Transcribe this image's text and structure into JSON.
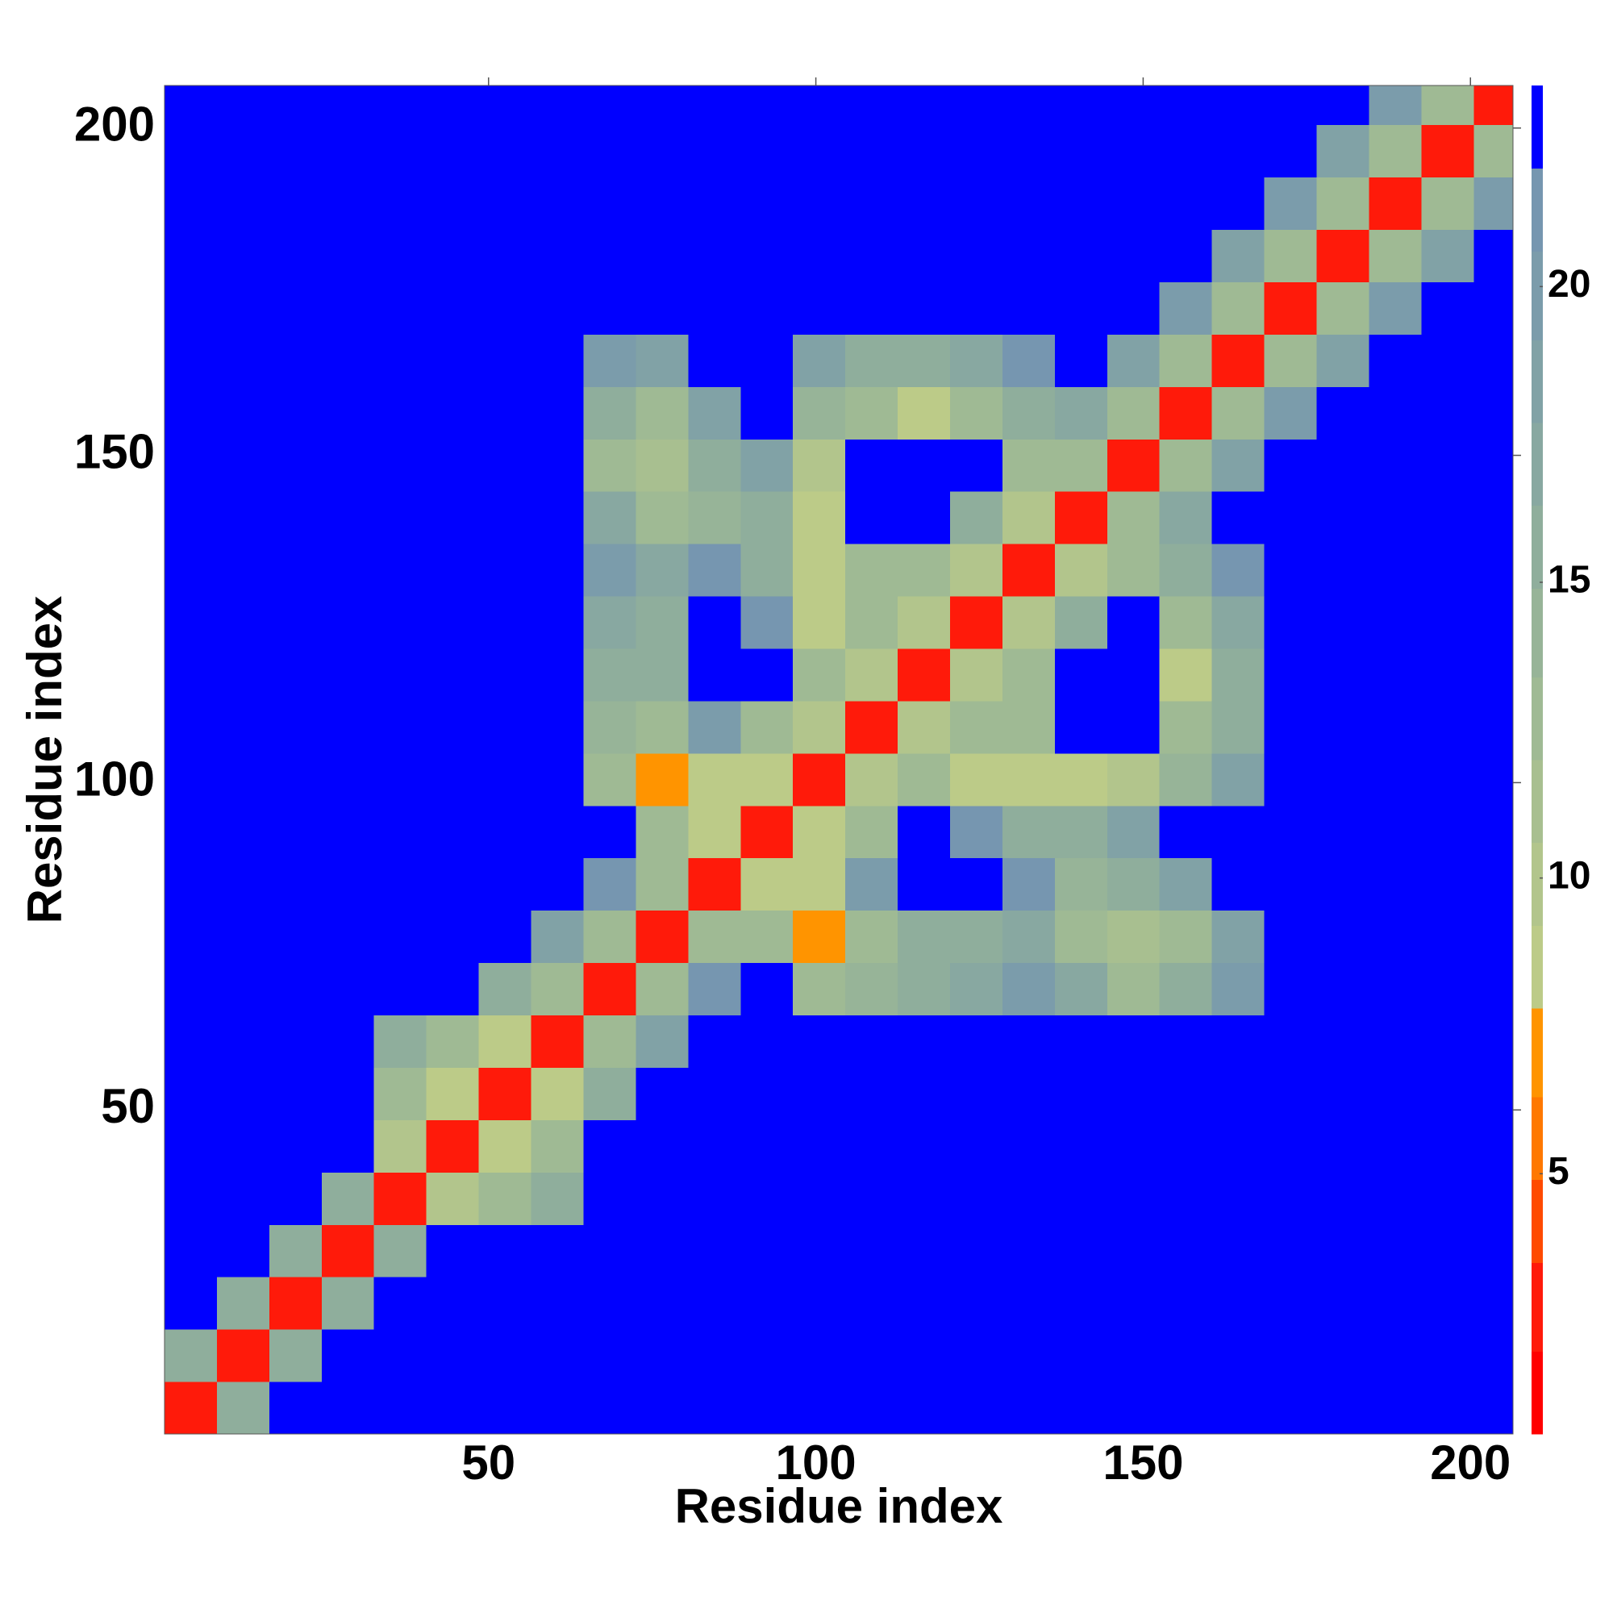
{
  "chart_data": {
    "type": "heatmap",
    "xlabel": "Residue index",
    "ylabel": "Residue index",
    "xlim": [
      0.5,
      206.5
    ],
    "ylim": [
      0.5,
      206.5
    ],
    "xticks": [
      50,
      100,
      150,
      200
    ],
    "yticks": [
      50,
      100,
      150,
      200
    ],
    "x_bins": [
      0.5,
      8.5,
      16.5,
      24.5,
      32.5,
      40.5,
      48.5,
      56.5,
      64.5,
      72.5,
      80.5,
      88.5,
      96.5,
      104.5,
      112.5,
      120.5,
      128.5,
      136.5,
      144.5,
      152.5,
      160.5,
      168.5,
      176.5,
      184.5,
      192.5,
      200.5,
      206.5
    ],
    "y_bins": [
      0.5,
      8.5,
      16.5,
      24.5,
      32.5,
      40.5,
      48.5,
      56.5,
      64.5,
      72.5,
      80.5,
      88.5,
      96.5,
      104.5,
      112.5,
      120.5,
      128.5,
      136.5,
      144.5,
      152.5,
      160.5,
      168.5,
      176.5,
      184.5,
      192.5,
      200.5,
      206.5
    ],
    "z": [
      [
        3,
        16,
        23,
        23,
        23,
        23,
        23,
        23,
        23,
        23,
        23,
        23,
        23,
        23,
        23,
        23,
        23,
        23,
        23,
        23,
        23,
        23,
        23,
        23,
        23,
        23
      ],
      [
        16,
        3,
        16,
        23,
        23,
        23,
        23,
        23,
        23,
        23,
        23,
        23,
        23,
        23,
        23,
        23,
        23,
        23,
        23,
        23,
        23,
        23,
        23,
        23,
        23,
        23
      ],
      [
        23,
        16,
        3,
        16,
        23,
        23,
        23,
        23,
        23,
        23,
        23,
        23,
        23,
        23,
        23,
        23,
        23,
        23,
        23,
        23,
        23,
        23,
        23,
        23,
        23,
        23
      ],
      [
        23,
        23,
        16,
        3,
        16,
        23,
        23,
        23,
        23,
        23,
        23,
        23,
        23,
        23,
        23,
        23,
        23,
        23,
        23,
        23,
        23,
        23,
        23,
        23,
        23,
        23
      ],
      [
        23,
        23,
        23,
        16,
        3,
        10,
        13,
        15,
        23,
        23,
        23,
        23,
        23,
        23,
        23,
        23,
        23,
        23,
        23,
        23,
        23,
        23,
        23,
        23,
        23,
        23
      ],
      [
        23,
        23,
        23,
        23,
        10,
        3,
        8,
        13,
        23,
        23,
        23,
        23,
        23,
        23,
        23,
        23,
        23,
        23,
        23,
        23,
        23,
        23,
        23,
        23,
        23,
        23
      ],
      [
        23,
        23,
        23,
        23,
        13,
        8,
        3,
        9,
        15,
        23,
        23,
        23,
        23,
        23,
        23,
        23,
        23,
        23,
        23,
        23,
        23,
        23,
        23,
        23,
        23,
        23
      ],
      [
        23,
        23,
        23,
        23,
        15,
        13,
        9,
        3,
        12,
        18,
        23,
        23,
        23,
        23,
        23,
        23,
        23,
        23,
        23,
        23,
        23,
        23,
        23,
        23,
        23,
        23
      ],
      [
        23,
        23,
        23,
        23,
        23,
        23,
        15,
        12,
        3,
        12,
        21,
        22,
        13,
        14,
        15,
        17,
        20,
        17,
        13,
        15,
        20,
        23,
        23,
        23,
        23,
        23
      ],
      [
        23,
        23,
        23,
        23,
        23,
        23,
        23,
        18,
        12,
        3,
        12,
        12,
        7,
        13,
        15,
        16,
        17,
        12,
        11,
        13,
        18,
        23,
        23,
        23,
        23,
        23
      ],
      [
        23,
        23,
        23,
        23,
        23,
        23,
        23,
        23,
        21,
        12,
        3,
        9,
        8,
        20,
        23,
        23,
        21,
        14,
        15,
        19,
        23,
        23,
        23,
        23,
        23,
        23
      ],
      [
        23,
        23,
        23,
        23,
        23,
        23,
        23,
        23,
        22,
        12,
        9,
        3,
        9,
        13,
        22,
        21,
        16,
        15,
        18,
        22,
        23,
        23,
        23,
        23,
        23,
        23
      ],
      [
        23,
        23,
        23,
        23,
        23,
        23,
        23,
        23,
        13,
        7,
        8,
        9,
        3,
        10,
        12,
        9,
        8,
        8,
        10,
        14,
        18,
        23,
        23,
        23,
        23,
        23
      ],
      [
        23,
        23,
        23,
        23,
        23,
        23,
        23,
        23,
        14,
        13,
        20,
        13,
        10,
        3,
        10,
        12,
        13,
        23,
        23,
        12,
        16,
        23,
        23,
        23,
        23,
        23
      ],
      [
        23,
        23,
        23,
        23,
        23,
        23,
        23,
        23,
        15,
        15,
        23,
        22,
        12,
        10,
        3,
        10,
        12,
        23,
        23,
        9,
        15,
        23,
        23,
        23,
        23,
        23
      ],
      [
        23,
        23,
        23,
        23,
        23,
        23,
        23,
        23,
        17,
        16,
        23,
        21,
        9,
        12,
        10,
        3,
        10,
        16,
        23,
        13,
        17,
        23,
        23,
        23,
        23,
        23
      ],
      [
        23,
        23,
        23,
        23,
        23,
        23,
        23,
        23,
        20,
        17,
        21,
        16,
        8,
        13,
        12,
        10,
        3,
        10,
        13,
        15,
        21,
        23,
        23,
        23,
        23,
        23
      ],
      [
        23,
        23,
        23,
        23,
        23,
        23,
        23,
        23,
        17,
        12,
        14,
        15,
        8,
        23,
        23,
        16,
        10,
        3,
        12,
        17,
        23,
        23,
        23,
        23,
        23,
        23
      ],
      [
        23,
        23,
        23,
        23,
        23,
        23,
        23,
        23,
        13,
        11,
        15,
        18,
        10,
        23,
        23,
        23,
        13,
        12,
        3,
        13,
        19,
        23,
        23,
        23,
        23,
        23
      ],
      [
        23,
        23,
        23,
        23,
        23,
        23,
        23,
        23,
        15,
        13,
        19,
        22,
        14,
        12,
        9,
        13,
        15,
        17,
        13,
        3,
        13,
        20,
        23,
        23,
        23,
        23
      ],
      [
        23,
        23,
        23,
        23,
        23,
        23,
        23,
        23,
        20,
        18,
        23,
        23,
        18,
        16,
        15,
        17,
        21,
        23,
        19,
        13,
        3,
        13,
        19,
        23,
        23,
        23
      ],
      [
        23,
        23,
        23,
        23,
        23,
        23,
        23,
        23,
        23,
        23,
        23,
        23,
        23,
        23,
        23,
        23,
        23,
        23,
        23,
        20,
        13,
        3,
        13,
        20,
        23,
        23
      ],
      [
        23,
        23,
        23,
        23,
        23,
        23,
        23,
        23,
        23,
        23,
        23,
        23,
        23,
        23,
        23,
        23,
        23,
        23,
        23,
        23,
        19,
        13,
        3,
        13,
        19,
        23
      ],
      [
        23,
        23,
        23,
        23,
        23,
        23,
        23,
        23,
        23,
        23,
        23,
        23,
        23,
        23,
        23,
        23,
        23,
        23,
        23,
        23,
        23,
        20,
        13,
        3,
        13,
        20
      ],
      [
        23,
        23,
        23,
        23,
        23,
        23,
        23,
        23,
        23,
        23,
        23,
        23,
        23,
        23,
        23,
        23,
        23,
        23,
        23,
        23,
        23,
        23,
        19,
        13,
        3,
        12
      ],
      [
        23,
        23,
        23,
        23,
        23,
        23,
        23,
        23,
        23,
        23,
        23,
        23,
        23,
        23,
        23,
        23,
        23,
        23,
        23,
        23,
        23,
        23,
        23,
        20,
        12,
        3
      ]
    ],
    "colorbar": {
      "boundaries": [
        0.6,
        2.0,
        3.5,
        4.9,
        6.3,
        7.8,
        9.2,
        10.6,
        12.0,
        13.4,
        14.9,
        16.3,
        17.7,
        19.1,
        20.6,
        22.0,
        23.4
      ],
      "colors": [
        "#ff0000",
        "#ff1a0a",
        "#ff4a00",
        "#ff7800",
        "#ff9400",
        "#bccb88",
        "#b2c58c",
        "#a8bf90",
        "#9fba94",
        "#97b498",
        "#8fae9c",
        "#88a8a1",
        "#81a2a6",
        "#7b9cab",
        "#7696b0",
        "#0000ff"
      ],
      "ticks": [
        5,
        10,
        15,
        20
      ]
    }
  }
}
